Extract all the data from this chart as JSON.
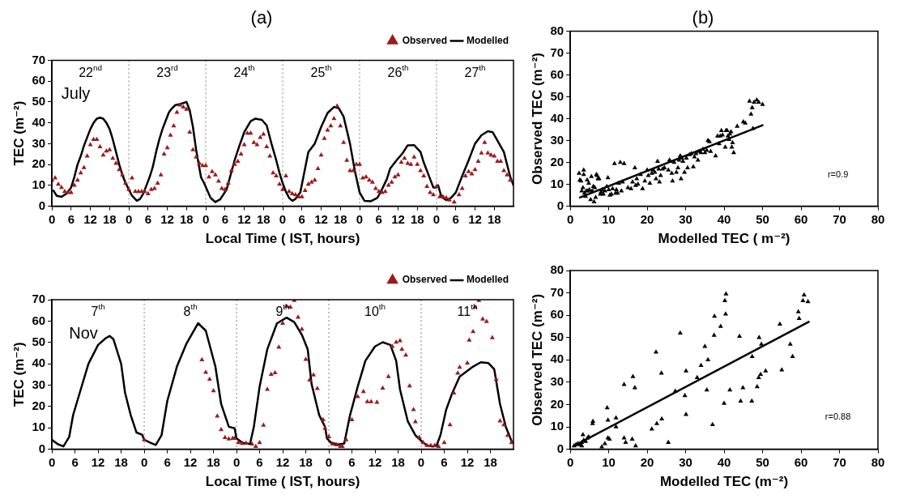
{
  "chart_data": [
    {
      "type": "line",
      "title": "(a)",
      "xlabel": "Local Time ( IST, hours)",
      "ylabel": "TEC (m⁻²)",
      "legend": "top right",
      "xlim": [
        "--07-22T00:00",
        "--07-28T00:00"
      ],
      "ylim": [
        0,
        70
      ],
      "xticks": [
        {
          "value": "--07-22T00:00",
          "label": "0"
        },
        {
          "value": "--07-22T06:00",
          "label": "6"
        },
        {
          "value": "--07-22T12:00",
          "label": "12"
        },
        {
          "value": "--07-22T18:00",
          "label": "18"
        },
        {
          "value": "--07-23T00:00",
          "label": "0"
        },
        {
          "value": "--07-23T06:00",
          "label": "6"
        },
        {
          "value": "--07-23T12:00",
          "label": "12"
        },
        {
          "value": "--07-23T18:00",
          "label": "18"
        },
        {
          "value": "--07-24T00:00",
          "label": "0"
        },
        {
          "value": "--07-24T06:00",
          "label": "6"
        },
        {
          "value": "--07-24T12:00",
          "label": "12"
        },
        {
          "value": "--07-24T18:00",
          "label": "18"
        },
        {
          "value": "--07-25T00:00",
          "label": "0"
        },
        {
          "value": "--07-25T06:00",
          "label": "6"
        },
        {
          "value": "--07-25T12:00",
          "label": "12"
        },
        {
          "value": "--07-25T18:00",
          "label": "18"
        },
        {
          "value": "--07-26T00:00",
          "label": "0"
        },
        {
          "value": "--07-26T06:00",
          "label": "6"
        },
        {
          "value": "--07-26T12:00",
          "label": "12"
        },
        {
          "value": "--07-26T18:00",
          "label": "18"
        },
        {
          "value": "--07-27T00:00",
          "label": "0"
        },
        {
          "value": "--07-27T06:00",
          "label": "6"
        },
        {
          "value": "--07-27T12:00",
          "label": "12"
        },
        {
          "value": "--07-27T18:00",
          "label": "18"
        }
      ],
      "x2lim": [
        "--07-22T00:00",
        "--07-28T00:00"
      ],
      "x2ticks": [
        {
          "value": "--07-22T12:00",
          "label": "22$^{nd}$"
        },
        {
          "value": "--07-23T12:00",
          "label": "23$^{rd}$"
        },
        {
          "value": "--07-24T12:00",
          "label": "24$^{th}$"
        },
        {
          "value": "--07-25T12:00",
          "label": "25$^{th}$"
        },
        {
          "value": "--07-26T12:00",
          "label": "26$^{th}$"
        },
        {
          "value": "--07-27T12:00",
          "label": "27$^{th}$"
        }
      ],
      "yticks": [
        0,
        10,
        20,
        30,
        40,
        50,
        60,
        70
      ],
      "ref_lines": [
        {
          "axis": "x",
          "value": "--07-23T00:00",
          "color": "#808080",
          "line_style": "dotted"
        },
        {
          "axis": "x",
          "value": "--07-24T00:00",
          "color": "#808080",
          "line_style": "dotted"
        },
        {
          "axis": "x",
          "value": "--07-25T00:00",
          "color": "#808080",
          "line_style": "dotted"
        },
        {
          "axis": "x",
          "value": "--07-26T00:00",
          "color": "#808080",
          "line_style": "dotted"
        },
        {
          "axis": "x",
          "value": "--07-27T00:00",
          "color": "#808080",
          "line_style": "dotted"
        }
      ],
      "annotations": [
        "July"
      ],
      "series": [
        {
          "name": "Observed",
          "type": "scatter",
          "marker": "triangle",
          "color": "#9b1b1b",
          "x": [
            "--07-22T00:00",
            "--07-22T01:00",
            "--07-22T02:00",
            "--07-22T03:00",
            "--07-22T04:00",
            "--07-22T05:00",
            "--07-22T06:00",
            "--07-22T07:00",
            "--07-22T08:00",
            "--07-22T09:00",
            "--07-22T10:00",
            "--07-22T11:00",
            "--07-22T12:00",
            "--07-22T13:00",
            "--07-22T14:00",
            "--07-22T15:00",
            "--07-22T16:00",
            "--07-22T17:00",
            "--07-22T18:00",
            "--07-22T19:00",
            "--07-22T20:00",
            "--07-22T21:00",
            "--07-22T22:00",
            "--07-22T23:00",
            "--07-23T00:00",
            "--07-23T01:00",
            "--07-23T02:00",
            "--07-23T03:00",
            "--07-23T04:00",
            "--07-23T05:00",
            "--07-23T06:00",
            "--07-23T07:00",
            "--07-23T08:00",
            "--07-23T09:00",
            "--07-23T10:00",
            "--07-23T11:00",
            "--07-23T12:00",
            "--07-23T13:00",
            "--07-23T14:00",
            "--07-23T15:00",
            "--07-23T16:00",
            "--07-23T17:00",
            "--07-23T18:00",
            "--07-23T19:00",
            "--07-23T20:00",
            "--07-23T21:00",
            "--07-23T22:00",
            "--07-23T23:00",
            "--07-24T00:00",
            "--07-24T01:00",
            "--07-24T02:00",
            "--07-24T03:00",
            "--07-24T04:00",
            "--07-24T05:00",
            "--07-24T06:00",
            "--07-24T07:00",
            "--07-24T08:00",
            "--07-24T09:00",
            "--07-24T10:00",
            "--07-24T11:00",
            "--07-24T12:00",
            "--07-24T13:00",
            "--07-24T14:00",
            "--07-24T15:00",
            "--07-24T16:00",
            "--07-24T17:00",
            "--07-24T18:00",
            "--07-24T19:00",
            "--07-24T20:00",
            "--07-24T21:00",
            "--07-24T22:00",
            "--07-24T23:00",
            "--07-25T00:00",
            "--07-25T01:00",
            "--07-25T02:00",
            "--07-25T03:00",
            "--07-25T04:00",
            "--07-25T05:00",
            "--07-25T06:00",
            "--07-25T07:00",
            "--07-25T08:00",
            "--07-25T09:00",
            "--07-25T10:00",
            "--07-25T11:00",
            "--07-25T12:00",
            "--07-25T13:00",
            "--07-25T14:00",
            "--07-25T15:00",
            "--07-25T16:00",
            "--07-25T17:00",
            "--07-25T18:00",
            "--07-25T19:00",
            "--07-25T20:00",
            "--07-25T21:00",
            "--07-25T22:00",
            "--07-25T23:00",
            "--07-26T00:00",
            "--07-26T01:00",
            "--07-26T02:00",
            "--07-26T03:00",
            "--07-26T04:00",
            "--07-26T05:00",
            "--07-26T06:00",
            "--07-26T07:00",
            "--07-26T08:00",
            "--07-26T09:00",
            "--07-26T10:00",
            "--07-26T11:00",
            "--07-26T12:00",
            "--07-26T13:00",
            "--07-26T14:00",
            "--07-26T15:00",
            "--07-26T16:00",
            "--07-26T17:00",
            "--07-26T18:00",
            "--07-26T19:00",
            "--07-26T20:00",
            "--07-26T21:00",
            "--07-26T22:00",
            "--07-26T23:00",
            "--07-27T00:00",
            "--07-27T01:00",
            "--07-27T02:00",
            "--07-27T03:00",
            "--07-27T04:00",
            "--07-27T05:30",
            "--07-27T07:00",
            "--07-27T08:00",
            "--07-27T09:00",
            "--07-27T10:00",
            "--07-27T11:00",
            "--07-27T12:00",
            "--07-27T13:00",
            "--07-27T14:00",
            "--07-27T15:00",
            "--07-27T16:00",
            "--07-27T17:00",
            "--07-27T18:00",
            "--07-27T19:00",
            "--07-27T20:00",
            "--07-27T21:00",
            "--07-27T22:00",
            "--07-27T23:00"
          ],
          "values": [
            12.5,
            13.5,
            10.5,
            9,
            7,
            6.5,
            6.5,
            10,
            12.5,
            16,
            18.5,
            24,
            29.5,
            32,
            32,
            28.5,
            24.5,
            26.5,
            27,
            23,
            20.5,
            17.5,
            15,
            11,
            8,
            13.5,
            7,
            7,
            7,
            7,
            6,
            8,
            8.5,
            11,
            15,
            25,
            28,
            34,
            38.5,
            45,
            48.5,
            47.5,
            46.5,
            35.5,
            27,
            23.5,
            20.5,
            19.5,
            19.5,
            14,
            16.5,
            15,
            12,
            8.5,
            8,
            11,
            17,
            20,
            21.5,
            25,
            29.5,
            35,
            35,
            30.5,
            29.5,
            33,
            34.5,
            28.5,
            24,
            16,
            14.5,
            10.5,
            8,
            14.5,
            7,
            6,
            5.5,
            4.5,
            4.5,
            7.5,
            10.5,
            11.5,
            12.5,
            18,
            24.5,
            32.5,
            36.5,
            38.5,
            42,
            48,
            38.5,
            30.5,
            22,
            17,
            17,
            20,
            20,
            13.5,
            14,
            12.5,
            11.5,
            8.5,
            7,
            6.5,
            7,
            10,
            11.5,
            14,
            15,
            21,
            23,
            20.5,
            20,
            23.5,
            20,
            17,
            14.5,
            9.5,
            6.5,
            5.5,
            9.5,
            4.5,
            4.5,
            4,
            3,
            2,
            5.5,
            8.5,
            14.5,
            16.5,
            15.5,
            17.5,
            21.5,
            25.5,
            30.5,
            25.5,
            24.5,
            24,
            21.5,
            21.5,
            17,
            15,
            12.5
          ]
        },
        {
          "name": "Modelled",
          "color": "#000000",
          "x": [
            "--07-22T00:30",
            "--07-22T01:30",
            "--07-22T03:00",
            "--07-22T04:30",
            "--07-22T06:00",
            "--07-22T07:00",
            "--07-22T08:00",
            "--07-22T09:00",
            "--07-22T10:00",
            "--07-22T11:00",
            "--07-22T12:00",
            "--07-22T13:00",
            "--07-22T14:00",
            "--07-22T15:00",
            "--07-22T16:00",
            "--07-22T17:00",
            "--07-22T18:00",
            "--07-22T19:00",
            "--07-22T20:00",
            "--07-22T21:00",
            "--07-22T22:00",
            "--07-22T23:00",
            "--07-23T00:00",
            "--07-23T01:00",
            "--07-23T02:30",
            "--07-23T03:30",
            "--07-23T04:30",
            "--07-23T05:30",
            "--07-23T06:30",
            "--07-23T07:30",
            "--07-23T08:30",
            "--07-23T09:30",
            "--07-23T10:30",
            "--07-23T11:30",
            "--07-23T12:30",
            "--07-23T13:30",
            "--07-23T14:30",
            "--07-23T16:00",
            "--07-23T18:00",
            "--07-23T19:00",
            "--07-23T20:00",
            "--07-23T21:00",
            "--07-23T22:30",
            "--07-23T23:30",
            "--07-24T01:30",
            "--07-24T03:00",
            "--07-24T04:30",
            "--07-24T06:30",
            "--07-24T09:00",
            "--07-24T10:30",
            "--07-24T12:00",
            "--07-24T14:00",
            "--07-24T15:30",
            "--07-24T17:30",
            "--07-24T19:00",
            "--07-24T20:30",
            "--07-24T22:00",
            "--07-24T23:00",
            "--07-25T00:00",
            "--07-25T01:00",
            "--07-25T02:00",
            "--07-25T03:00",
            "--07-25T04:00",
            "--07-25T05:30",
            "--07-25T08:00",
            "--07-25T10:00",
            "--07-25T12:00",
            "--07-25T14:00",
            "--07-25T16:00",
            "--07-25T17:30",
            "--07-25T19:00",
            "--07-25T21:00",
            "--07-25T22:30",
            "--07-26T00:00",
            "--07-26T01:30",
            "--07-26T03:30",
            "--07-26T05:30",
            "--07-26T06:30",
            "--07-26T08:30",
            "--07-26T09:30",
            "--07-26T11:30",
            "--07-26T13:30",
            "--07-26T15:00",
            "--07-26T17:00",
            "--07-26T19:00",
            "--07-26T20:00",
            "--07-26T22:00",
            "--07-26T23:00",
            "--07-27T00:00",
            "--07-27T00:30",
            "--07-27T01:30",
            "--07-27T03:00",
            "--07-27T04:30",
            "--07-27T06:00",
            "--07-27T08:00",
            "--07-27T10:00",
            "--07-27T12:00",
            "--07-27T14:00",
            "--07-27T16:00",
            "--07-27T17:30",
            "--07-27T19:00",
            "--07-27T21:00",
            "--07-27T23:00",
            "--07-28T00:00"
          ],
          "values": [
            7.5,
            5,
            4.5,
            6,
            9,
            14,
            20,
            24,
            29,
            33,
            37,
            40,
            42,
            42.5,
            42,
            40,
            37,
            32,
            26,
            20,
            15,
            11,
            8,
            5,
            2.6,
            3.5,
            6,
            10,
            14,
            19,
            26,
            32,
            37,
            41,
            45,
            47,
            48.5,
            49,
            50,
            46,
            38,
            27,
            14,
            11,
            4,
            2,
            3.3,
            8,
            22,
            29,
            35.5,
            40.8,
            42,
            41.4,
            38.8,
            30,
            22,
            16,
            11,
            7,
            4,
            2.6,
            3.5,
            6.6,
            26,
            30,
            38,
            44.7,
            47.6,
            47,
            43,
            30,
            17,
            6.6,
            2.6,
            2.4,
            4,
            6.6,
            13,
            18,
            22,
            25.6,
            29.2,
            29.3,
            26,
            21,
            13,
            9,
            9,
            10,
            4.6,
            3,
            4,
            6.6,
            14.5,
            22,
            30,
            34,
            36,
            35.5,
            31.5,
            26,
            14,
            10
          ]
        }
      ]
    },
    {
      "type": "scatter",
      "title": "(b)",
      "xlabel": "Modelled TEC ( m⁻²)",
      "ylabel": "Observed TEC (m⁻²)",
      "xlim": [
        0,
        80
      ],
      "ylim": [
        0,
        80
      ],
      "xticks": [
        0,
        10,
        20,
        30,
        40,
        50,
        60,
        70,
        80
      ],
      "yticks": [
        0,
        10,
        20,
        30,
        40,
        50,
        60,
        70,
        80
      ],
      "annotations": [
        "r=0.9"
      ],
      "series": [
        {
          "marker": "triangle",
          "color": "#000000",
          "x": [
            2.3,
            2.5,
            2.8,
            3,
            3.3,
            3.5,
            3.5,
            3.7,
            4,
            4.2,
            4.4,
            4.6,
            4.8,
            5,
            5.3,
            5.5,
            5.7,
            6,
            6.2,
            6.4,
            6.6,
            6.8,
            7,
            7.2,
            7.5,
            7.8,
            8,
            8.3,
            8.6,
            9,
            9.5,
            9.8,
            10,
            10.3,
            10.7,
            11,
            11.5,
            11.8,
            12,
            12.3,
            12.6,
            13,
            13.3,
            13.6,
            14,
            15,
            15.8,
            16.2,
            16.8,
            17,
            17.3,
            17.6,
            18.3,
            18.8,
            19.4,
            20,
            20.3,
            20.7,
            21.2,
            21.5,
            22,
            22.3,
            22.7,
            23,
            23.2,
            23.5,
            24,
            24.5,
            25.5,
            25.8,
            26,
            26.4,
            26.6,
            27,
            27.6,
            28,
            28.3,
            28.6,
            28.8,
            29,
            29.3,
            29.7,
            30.2,
            30.5,
            31,
            31.5,
            32,
            32.3,
            32.7,
            33.2,
            33.5,
            34,
            34.5,
            35,
            35.5,
            35.8,
            36.2,
            36.5,
            37.8,
            38.3,
            38.7,
            39,
            39.3,
            39.6,
            40.3,
            40.5,
            40.8,
            41,
            41.3,
            41.5,
            41.8,
            42,
            42.2,
            42.5,
            43.4,
            45,
            45.5,
            46.6,
            47,
            47.3,
            47.5,
            47.8,
            48.5,
            49,
            50
          ],
          "values": [
            15,
            12,
            11.5,
            7,
            8.5,
            16.5,
            14.5,
            6,
            4.5,
            7,
            12,
            7,
            10.5,
            7.5,
            3,
            13.5,
            7,
            9,
            2,
            8.5,
            4,
            14.5,
            14,
            12.5,
            12.5,
            5.5,
            6.5,
            7.5,
            5.5,
            7,
            9,
            13,
            7.5,
            5,
            5.5,
            8,
            19.5,
            6,
            7.5,
            6,
            10.5,
            20,
            7,
            11,
            19.5,
            8.5,
            8,
            11,
            17.5,
            9.5,
            12.5,
            10,
            14.5,
            8,
            11.5,
            16.5,
            14,
            10.5,
            15,
            16.5,
            15.5,
            12.5,
            20.5,
            17,
            11,
            14,
            17,
            17.5,
            16.5,
            21,
            20.5,
            15,
            11.5,
            20,
            15.5,
            17.5,
            21,
            23,
            12.5,
            22,
            20.5,
            15.5,
            22,
            17.5,
            23.5,
            24,
            18,
            22.5,
            24,
            21,
            25,
            24.5,
            26,
            24.5,
            25.5,
            30,
            29.5,
            25,
            23,
            32,
            28.5,
            32,
            34.5,
            32.5,
            27,
            34.5,
            34.5,
            32,
            30.5,
            33,
            34,
            27,
            29,
            24.5,
            36.5,
            38.5,
            38,
            48,
            42,
            45,
            35.5,
            47.5,
            48.5,
            47.5,
            46.5
          ]
        },
        {
          "type": "line",
          "color": "#000000",
          "x": [
            2.5,
            50
          ],
          "values": [
            4,
            37
          ]
        }
      ]
    },
    {
      "type": "line",
      "xlabel": "Local Time ( IST, hours)",
      "ylabel": "TEC (m⁻²)",
      "legend": "top right",
      "xlim": [
        "--11-07T00:00",
        "--11-12T00:00"
      ],
      "ylim": [
        0,
        70
      ],
      "xticks": [
        {
          "value": "--11-07T00:00",
          "label": "0"
        },
        {
          "value": "--11-07T06:00",
          "label": "6"
        },
        {
          "value": "--11-07T12:00",
          "label": "12"
        },
        {
          "value": "--11-07T18:00",
          "label": "18"
        },
        {
          "value": "--11-08T00:00",
          "label": "0"
        },
        {
          "value": "--11-08T06:00",
          "label": "6"
        },
        {
          "value": "--11-08T12:00",
          "label": "12"
        },
        {
          "value": "--11-08T18:00",
          "label": "18"
        },
        {
          "value": "--11-09T00:00",
          "label": "0"
        },
        {
          "value": "--11-09T06:00",
          "label": "6"
        },
        {
          "value": "--11-09T12:00",
          "label": "12"
        },
        {
          "value": "--11-09T18:00",
          "label": "18"
        },
        {
          "value": "--11-10T00:00",
          "label": "0"
        },
        {
          "value": "--11-10T06:00",
          "label": "6"
        },
        {
          "value": "--11-10T12:00",
          "label": "12"
        },
        {
          "value": "--11-10T18:00",
          "label": "18"
        },
        {
          "value": "--11-11T00:00",
          "label": "0"
        },
        {
          "value": "--11-11T06:00",
          "label": "6"
        },
        {
          "value": "--11-11T12:00",
          "label": "12"
        },
        {
          "value": "--11-11T18:00",
          "label": "18"
        }
      ],
      "x2lim": [
        "--11-07T00:00",
        "--11-12T00:00"
      ],
      "x2ticks": [
        {
          "value": "--11-07T12:00",
          "label": "7$^{th}$"
        },
        {
          "value": "--11-08T12:00",
          "label": "8$^{th}$"
        },
        {
          "value": "--11-09T12:00",
          "label": "9$^{th}$"
        },
        {
          "value": "--11-10T12:00",
          "label": "10$^{th}$"
        },
        {
          "value": "--11-11T12:00",
          "label": "11$^{th}$"
        }
      ],
      "yticks": [
        0,
        10,
        20,
        30,
        40,
        50,
        60,
        70
      ],
      "ref_lines": [
        {
          "axis": "x",
          "value": "--11-08T00:00",
          "color": "#808080",
          "line_style": "dotted"
        },
        {
          "axis": "x",
          "value": "--11-09T00:00",
          "color": "#808080",
          "line_style": "dotted"
        },
        {
          "axis": "x",
          "value": "--11-10T00:00",
          "color": "#808080",
          "line_style": "dotted"
        },
        {
          "axis": "x",
          "value": "--11-11T00:00",
          "color": "#808080",
          "line_style": "dotted"
        }
      ],
      "annotations": [
        "Nov"
      ],
      "series": [
        {
          "name": "Observed",
          "type": "scatter",
          "marker": "triangle",
          "color": "#9b1b1b",
          "x": [
            "--11-08T00:00",
            "--11-08T15:00",
            "--11-08T16:00",
            "--11-08T17:00",
            "--11-08T18:00",
            "--11-08T19:00",
            "--11-08T20:00",
            "--11-08T21:00",
            "--11-08T22:00",
            "--11-08T23:00",
            "--11-08T23:30",
            "--11-09T00:30",
            "--11-09T01:30",
            "--11-09T02:30",
            "--11-09T04:00",
            "--11-09T05:00",
            "--11-09T06:00",
            "--11-09T07:00",
            "--11-09T08:00",
            "--11-09T09:00",
            "--11-09T10:00",
            "--11-09T11:00",
            "--11-09T12:00",
            "--11-09T13:00",
            "--11-09T14:00",
            "--11-09T15:00",
            "--11-09T16:00",
            "--11-09T17:00",
            "--11-09T18:00",
            "--11-09T19:00",
            "--11-09T20:00",
            "--11-09T21:00",
            "--11-09T22:30",
            "--11-09T23:00",
            "--11-10T00:00",
            "--11-10T01:00",
            "--11-10T02:00",
            "--11-10T03:00",
            "--11-10T03:30",
            "--11-10T04:30",
            "--11-10T06:00",
            "--11-10T07:30",
            "--11-10T09:00",
            "--11-10T10:00",
            "--11-10T11:00",
            "--11-10T12:30",
            "--11-10T14:00",
            "--11-10T15:30",
            "--11-10T16:30",
            "--11-10T17:30",
            "--11-10T18:30",
            "--11-10T19:00",
            "--11-10T20:00",
            "--11-10T21:00",
            "--11-10T22:00",
            "--11-10T22:30",
            "--11-10T23:30",
            "--11-11T00:30",
            "--11-11T01:30",
            "--11-11T02:30",
            "--11-11T03:30",
            "--11-11T04:30",
            "--11-11T06:00",
            "--11-11T07:30",
            "--11-11T08:30",
            "--11-11T09:30",
            "--11-11T10:00",
            "--11-11T12:00",
            "--11-11T12:30",
            "--11-11T13:30",
            "--11-11T14:00",
            "--11-11T15:00",
            "--11-11T16:00",
            "--11-11T17:00",
            "--11-11T18:30",
            "--11-11T19:30",
            "--11-11T20:30",
            "--11-11T21:30",
            "--11-11T22:30",
            "--11-11T23:30"
          ],
          "values": [
            4.4,
            41.8,
            36,
            32.7,
            27.3,
            15.5,
            9.1,
            5.4,
            4.8,
            5.1,
            5.1,
            3.1,
            2.7,
            2.8,
            2.4,
            1.3,
            3.1,
            11.2,
            28,
            35,
            35.8,
            47.7,
            58.9,
            66.9,
            66.5,
            69.6,
            61.8,
            56.2,
            42,
            32.4,
            34.7,
            28.4,
            13.8,
            9.8,
            5.8,
            2.4,
            2,
            1.3,
            1.3,
            4.4,
            13.8,
            24.6,
            27,
            22.2,
            22.2,
            21.9,
            28.6,
            34,
            48.1,
            50.1,
            50.8,
            46.8,
            44,
            29.6,
            18.5,
            12.8,
            5.5,
            3.1,
            1.7,
            1.7,
            1.7,
            1.3,
            3.1,
            11.4,
            26.3,
            35.6,
            38.3,
            40.3,
            51,
            55,
            66.5,
            69.6,
            60.9,
            59.8,
            52.2,
            32.7,
            13.2,
            11.4,
            6.5,
            3.1
          ]
        },
        {
          "name": "Modelled",
          "color": "#000000",
          "x": [
            "--11-07T00:00",
            "--11-07T01:30",
            "--11-07T03:00",
            "--11-07T04:30",
            "--11-07T05:30",
            "--11-07T07:30",
            "--11-07T09:30",
            "--11-07T12:00",
            "--11-07T14:00",
            "--11-07T15:00",
            "--11-07T16:00",
            "--11-07T18:00",
            "--11-07T19:00",
            "--11-07T20:30",
            "--11-07T22:00",
            "--11-07T23:30",
            "--11-08T00:00",
            "--11-08T01:30",
            "--11-08T03:00",
            "--11-08T04:30",
            "--11-08T06:00",
            "--11-08T08:30",
            "--11-08T11:00",
            "--11-08T14:00",
            "--11-08T16:00",
            "--11-08T18:30",
            "--11-08T20:00",
            "--11-08T22:00",
            "--11-08T23:30",
            "--11-09T00:00",
            "--11-09T01:30",
            "--11-09T03:30",
            "--11-09T04:30",
            "--11-09T06:00",
            "--11-09T08:00",
            "--11-09T10:30",
            "--11-09T13:00",
            "--11-09T15:00",
            "--11-09T17:00",
            "--11-09T18:30",
            "--11-09T19:30",
            "--11-09T21:30",
            "--11-09T23:00",
            "--11-09T23:30",
            "--11-10T00:30",
            "--11-10T02:30",
            "--11-10T04:00",
            "--11-10T05:30",
            "--11-10T07:30",
            "--11-10T09:30",
            "--11-10T12:00",
            "--11-10T14:00",
            "--11-10T16:00",
            "--11-10T17:30",
            "--11-10T18:30",
            "--11-10T20:30",
            "--11-10T22:30",
            "--11-11T00:00",
            "--11-11T01:30",
            "--11-11T03:00",
            "--11-11T04:00",
            "--11-11T05:00",
            "--11-11T06:30",
            "--11-11T08:00",
            "--11-11T10:00",
            "--11-11T13:30",
            "--11-11T15:30",
            "--11-11T17:30",
            "--11-11T19:00",
            "--11-11T20:30",
            "--11-11T22:00",
            "--11-11T23:30",
            "--11-12T00:00"
          ],
          "values": [
            4.4,
            2.4,
            1.3,
            5.8,
            15.9,
            28,
            40,
            48.8,
            52,
            53,
            51.5,
            40,
            26.6,
            15.9,
            7.8,
            6.7,
            4.4,
            3.1,
            2,
            6.5,
            22.6,
            38.7,
            49.5,
            59,
            55.5,
            38.7,
            21.2,
            10.5,
            9.8,
            5.1,
            3.1,
            2.4,
            10.5,
            29.3,
            46.8,
            58.9,
            61.6,
            59.5,
            53.5,
            46.8,
            30.6,
            15.9,
            10.5,
            5.1,
            3.1,
            2.2,
            2.7,
            15.9,
            29.3,
            41.4,
            48.1,
            50.1,
            48.8,
            41.4,
            28,
            13.2,
            6.5,
            4,
            1.7,
            1.3,
            1.7,
            6.5,
            18.5,
            25.9,
            34,
            38.7,
            40.7,
            40.3,
            37.4,
            21.2,
            10.5,
            3.8,
            3
          ]
        }
      ]
    },
    {
      "type": "scatter",
      "xlabel": "Modelled TEC (m⁻²)",
      "ylabel": "Observed TEC (m⁻²)",
      "xlim": [
        0,
        80
      ],
      "ylim": [
        0,
        80
      ],
      "xticks": [
        0,
        10,
        20,
        30,
        40,
        50,
        60,
        70,
        80
      ],
      "yticks": [
        0,
        10,
        20,
        30,
        40,
        50,
        60,
        70,
        80
      ],
      "annotations": [
        "r=0.88"
      ],
      "series": [
        {
          "marker": "triangle",
          "color": "#000000",
          "x": [
            1,
            1.5,
            2,
            2.5,
            3,
            3,
            3.3,
            3.5,
            4,
            4.5,
            4.8,
            5.8,
            5.9,
            8.2,
            9,
            9.6,
            9.8,
            9.8,
            10.2,
            11.9,
            11.9,
            14,
            14,
            14.4,
            16.1,
            16.3,
            16.8,
            17,
            21.2,
            22.3,
            22.5,
            23.7,
            23.8,
            25.5,
            27.3,
            28.6,
            29.8,
            30.1,
            30.1,
            33,
            34,
            35,
            35.5,
            35.8,
            37,
            37.4,
            37.5,
            39.1,
            40,
            40.2,
            40.4,
            40.5,
            41.5,
            44,
            44.3,
            44.9,
            47.2,
            47.3,
            48.6,
            49,
            49.1,
            49.5,
            49.7,
            50.8,
            54.5,
            55,
            57.2,
            57.8,
            59.3,
            59.5,
            60.5,
            60.8,
            61.8
          ],
          "values": [
            1.5,
            2,
            2.5,
            2,
            1.5,
            3,
            6.5,
            4,
            3.5,
            5,
            5.5,
            11.5,
            12.5,
            1,
            2.5,
            18.5,
            13,
            5,
            4.5,
            14,
            10,
            29,
            5,
            3,
            4.5,
            32.5,
            27.5,
            1.5,
            9,
            43.5,
            11.5,
            34,
            13.5,
            3,
            26,
            52,
            24,
            35,
            15.5,
            32,
            37.5,
            46,
            26.5,
            40,
            11,
            51,
            59.5,
            55,
            20.5,
            66.5,
            60.5,
            69.5,
            26.5,
            50.5,
            21.5,
            27.5,
            21.5,
            41.5,
            28,
            32,
            50,
            33.5,
            47,
            35,
            56,
            35.5,
            47,
            41.5,
            61.5,
            58.5,
            66.5,
            69,
            66
          ]
        },
        {
          "type": "line",
          "color": "#000000",
          "x": [
            1,
            62
          ],
          "values": [
            1.5,
            57
          ]
        }
      ]
    }
  ]
}
